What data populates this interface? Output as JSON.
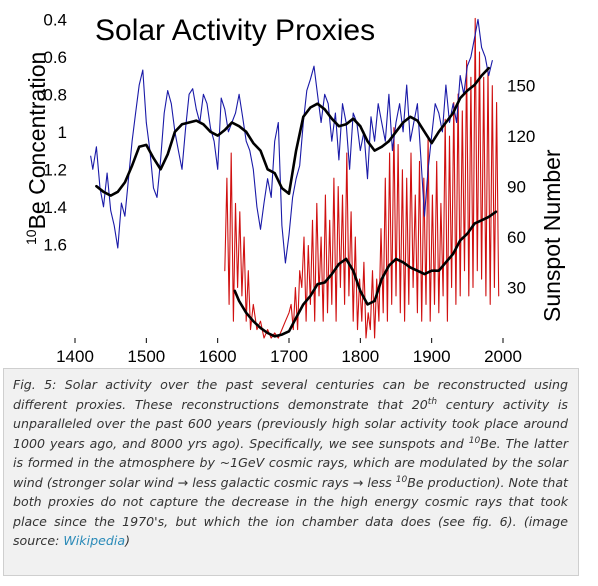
{
  "chart_data": {
    "type": "line",
    "title": "Solar Activity Proxies",
    "left_ylabel": {
      "sup": "10",
      "text": "Be Concentration"
    },
    "right_ylabel": "Sunspot Number",
    "xlabel": "",
    "xlim": [
      1400,
      2000
    ],
    "x_ticks": [
      "1400",
      "1500",
      "1600",
      "1700",
      "1800",
      "1900",
      "2000"
    ],
    "left_ylim": [
      0.35,
      2.1
    ],
    "left_inverted": true,
    "left_ticks": [
      "0.4",
      "0.6",
      "0.8",
      "1",
      "1.2",
      "1.4",
      "1.6"
    ],
    "right_ylim": [
      0,
      195
    ],
    "right_ticks": [
      "30",
      "60",
      "90",
      "120",
      "150"
    ],
    "grid": false,
    "series": [
      {
        "key": "be10_raw",
        "axis": "left",
        "color": "#1a1aa8",
        "x": [
          1422,
          1425,
          1430,
          1435,
          1440,
          1445,
          1450,
          1455,
          1460,
          1465,
          1470,
          1475,
          1480,
          1485,
          1490,
          1495,
          1500,
          1505,
          1510,
          1515,
          1520,
          1525,
          1530,
          1535,
          1540,
          1545,
          1550,
          1555,
          1560,
          1565,
          1570,
          1575,
          1580,
          1585,
          1590,
          1595,
          1600,
          1605,
          1610,
          1615,
          1620,
          1625,
          1630,
          1635,
          1640,
          1645,
          1650,
          1655,
          1660,
          1665,
          1670,
          1675,
          1680,
          1685,
          1690,
          1695,
          1700,
          1705,
          1710,
          1715,
          1720,
          1725,
          1730,
          1735,
          1740,
          1745,
          1750,
          1755,
          1760,
          1765,
          1770,
          1775,
          1780,
          1785,
          1790,
          1795,
          1800,
          1805,
          1810,
          1815,
          1820,
          1825,
          1830,
          1835,
          1840,
          1845,
          1850,
          1855,
          1860,
          1865,
          1870,
          1875,
          1880,
          1885,
          1890,
          1895,
          1900,
          1905,
          1910,
          1915,
          1920,
          1925,
          1930,
          1935,
          1940,
          1945,
          1950,
          1955,
          1960,
          1965,
          1970,
          1975,
          1980,
          1985
        ],
        "values": [
          1.13,
          1.2,
          1.08,
          1.3,
          1.4,
          1.22,
          1.42,
          1.5,
          1.62,
          1.38,
          1.45,
          1.25,
          1.05,
          0.9,
          0.75,
          0.67,
          0.95,
          1.1,
          1.3,
          1.35,
          1.15,
          0.9,
          0.78,
          0.85,
          1.0,
          1.1,
          1.2,
          0.98,
          0.8,
          0.77,
          0.88,
          0.95,
          0.8,
          0.85,
          0.98,
          1.05,
          1.2,
          0.82,
          0.88,
          1.0,
          0.95,
          0.9,
          0.8,
          0.92,
          1.05,
          1.1,
          1.2,
          1.4,
          1.52,
          1.38,
          1.25,
          1.35,
          1.05,
          0.95,
          1.5,
          1.7,
          1.55,
          1.35,
          1.25,
          1.18,
          0.95,
          0.78,
          0.72,
          0.65,
          0.8,
          0.95,
          0.8,
          0.85,
          1.05,
          0.9,
          1.15,
          0.85,
          0.95,
          1.2,
          0.9,
          0.95,
          1.1,
          1.0,
          1.25,
          0.92,
          1.05,
          0.85,
          0.95,
          1.05,
          0.8,
          1.1,
          0.95,
          0.85,
          1.0,
          0.75,
          1.05,
          0.95,
          0.85,
          1.15,
          1.45,
          1.2,
          1.02,
          0.85,
          0.9,
          1.0,
          0.75,
          0.95,
          0.85,
          0.95,
          0.7,
          0.8,
          0.65,
          0.6,
          0.5,
          0.4,
          0.55,
          0.6,
          0.7,
          0.62
        ]
      },
      {
        "key": "be10_smoothed",
        "axis": "left",
        "color": "#000000",
        "x": [
          1430,
          1440,
          1450,
          1460,
          1470,
          1480,
          1490,
          1500,
          1510,
          1520,
          1530,
          1540,
          1550,
          1560,
          1570,
          1580,
          1590,
          1600,
          1610,
          1620,
          1630,
          1640,
          1650,
          1660,
          1670,
          1680,
          1690,
          1700,
          1710,
          1720,
          1730,
          1740,
          1750,
          1760,
          1770,
          1780,
          1790,
          1800,
          1810,
          1820,
          1830,
          1840,
          1850,
          1860,
          1870,
          1880,
          1890,
          1900,
          1910,
          1920,
          1930,
          1940,
          1950,
          1960,
          1970,
          1980
        ],
        "values": [
          1.29,
          1.32,
          1.34,
          1.32,
          1.27,
          1.18,
          1.08,
          1.07,
          1.14,
          1.2,
          1.12,
          1.0,
          0.96,
          0.95,
          0.94,
          0.96,
          1.0,
          1.02,
          0.99,
          0.95,
          0.97,
          1.0,
          1.06,
          1.1,
          1.2,
          1.22,
          1.3,
          1.33,
          1.1,
          0.92,
          0.87,
          0.85,
          0.88,
          0.93,
          0.97,
          0.96,
          0.93,
          0.97,
          1.05,
          1.1,
          1.08,
          1.05,
          1.0,
          0.95,
          0.92,
          0.94,
          1.0,
          1.06,
          1.0,
          0.95,
          0.9,
          0.82,
          0.78,
          0.75,
          0.7,
          0.66
        ]
      },
      {
        "key": "sunspot_raw",
        "axis": "right",
        "color": "#d01010",
        "x": [
          1610,
          1613,
          1616,
          1619,
          1622,
          1625,
          1628,
          1631,
          1634,
          1637,
          1640,
          1643,
          1646,
          1650,
          1655,
          1660,
          1665,
          1670,
          1675,
          1680,
          1685,
          1690,
          1695,
          1700,
          1703,
          1706,
          1709,
          1712,
          1715,
          1718,
          1721,
          1724,
          1727,
          1730,
          1733,
          1736,
          1739,
          1742,
          1745,
          1748,
          1751,
          1754,
          1757,
          1760,
          1763,
          1766,
          1769,
          1772,
          1775,
          1778,
          1781,
          1784,
          1787,
          1790,
          1793,
          1796,
          1799,
          1802,
          1805,
          1808,
          1811,
          1814,
          1817,
          1820,
          1823,
          1826,
          1829,
          1832,
          1835,
          1838,
          1841,
          1844,
          1847,
          1850,
          1853,
          1856,
          1859,
          1862,
          1865,
          1868,
          1871,
          1874,
          1877,
          1880,
          1883,
          1886,
          1889,
          1892,
          1895,
          1898,
          1901,
          1904,
          1907,
          1910,
          1913,
          1916,
          1919,
          1922,
          1925,
          1928,
          1931,
          1934,
          1937,
          1940,
          1943,
          1946,
          1949,
          1952,
          1955,
          1958,
          1961,
          1964,
          1967,
          1970,
          1973,
          1976,
          1979,
          1982,
          1985,
          1988,
          1991,
          1994
        ],
        "values": [
          40,
          95,
          20,
          110,
          10,
          80,
          30,
          75,
          25,
          60,
          10,
          40,
          5,
          20,
          5,
          10,
          0,
          5,
          0,
          3,
          0,
          5,
          10,
          15,
          20,
          5,
          30,
          5,
          40,
          30,
          60,
          10,
          55,
          20,
          70,
          10,
          80,
          25,
          60,
          10,
          85,
          15,
          70,
          20,
          95,
          10,
          90,
          30,
          85,
          20,
          110,
          25,
          75,
          10,
          60,
          5,
          35,
          10,
          45,
          0,
          15,
          5,
          40,
          0,
          35,
          10,
          65,
          15,
          95,
          10,
          110,
          20,
          125,
          25,
          115,
          15,
          100,
          10,
          95,
          20,
          110,
          30,
          85,
          15,
          105,
          10,
          95,
          20,
          120,
          10,
          85,
          20,
          105,
          15,
          80,
          25,
          130,
          10,
          120,
          30,
          140,
          20,
          145,
          25,
          135,
          40,
          165,
          25,
          155,
          30,
          190,
          40,
          170,
          35,
          155,
          25,
          160,
          20,
          150,
          30,
          140,
          25
        ]
      },
      {
        "key": "sunspot_smoothed",
        "axis": "right",
        "color": "#000000",
        "x": [
          1624,
          1630,
          1640,
          1650,
          1660,
          1670,
          1680,
          1690,
          1700,
          1710,
          1720,
          1730,
          1740,
          1750,
          1760,
          1770,
          1780,
          1790,
          1800,
          1810,
          1820,
          1830,
          1840,
          1850,
          1860,
          1870,
          1880,
          1890,
          1900,
          1910,
          1920,
          1930,
          1940,
          1950,
          1960,
          1970,
          1980,
          1990
        ],
        "values": [
          28,
          22,
          15,
          10,
          6,
          3,
          1,
          2,
          4,
          12,
          20,
          25,
          32,
          33,
          38,
          44,
          47,
          40,
          28,
          20,
          22,
          35,
          43,
          47,
          45,
          42,
          40,
          38,
          40,
          40,
          45,
          50,
          58,
          62,
          68,
          70,
          72,
          75
        ]
      }
    ]
  },
  "caption": {
    "fig_label": "Fig. 5:",
    "part1": " Solar activity over the past several centuries can be reconstructed using different proxies. These reconstructions demonstrate that 20",
    "sup_th": "th",
    "part2": " century activity is unparalleled over the past 600 years (previously high solar activity took place around 1000 years ago, and 8000 yrs ago). Specifically, we see sunspots and ",
    "sup_be1": "10",
    "part3": "Be. The latter is formed in the atmosphere by ~1GeV cosmic rays, which are modulated by the solar wind (stronger solar wind → less galactic cosmic rays → less ",
    "sup_be2": "10",
    "part4": "Be production). Note that both proxies do not capture the decrease in the high energy cosmic rays that took place since the 1970's, but which the ion chamber data does (see fig. 6). (image source: ",
    "link_text": "Wikipedia",
    "part5": ")"
  }
}
